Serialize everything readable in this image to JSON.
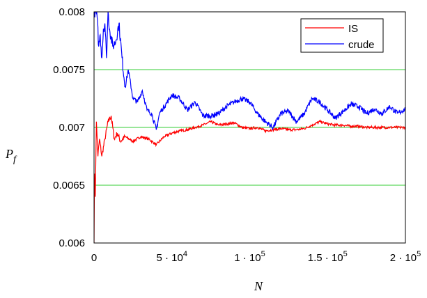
{
  "chart_data": {
    "type": "line",
    "xlabel": "N",
    "ylabel_main": "P",
    "ylabel_sub": "f",
    "xlim": [
      0,
      200000
    ],
    "ylim": [
      0.006,
      0.008
    ],
    "grid": "horizontal",
    "legend_position": "top-right",
    "y_ticks": [
      {
        "value": 0.006,
        "label": "0.006"
      },
      {
        "value": 0.0065,
        "label": "0.0065"
      },
      {
        "value": 0.007,
        "label": "0.007"
      },
      {
        "value": 0.0075,
        "label": "0.0075"
      },
      {
        "value": 0.008,
        "label": "0.008"
      }
    ],
    "x_ticks": [
      {
        "value": 0,
        "label": "0"
      },
      {
        "value": 50000,
        "mantissa": "5",
        "exp": "4"
      },
      {
        "value": 100000,
        "mantissa": "1",
        "exp": "5"
      },
      {
        "value": 150000,
        "mantissa": "1.5",
        "exp": "5"
      },
      {
        "value": 200000,
        "mantissa": "2",
        "exp": "5"
      }
    ],
    "series": [
      {
        "name": "IS",
        "color": "#ff0000",
        "x": [
          0,
          300,
          800,
          1500,
          2500,
          3500,
          5000,
          7000,
          9000,
          11000,
          13000,
          15000,
          17000,
          20000,
          25000,
          30000,
          35000,
          40000,
          45000,
          50000,
          55000,
          60000,
          65000,
          70000,
          75000,
          80000,
          85000,
          90000,
          95000,
          100000,
          105000,
          110000,
          115000,
          120000,
          125000,
          130000,
          135000,
          140000,
          145000,
          150000,
          155000,
          160000,
          165000,
          170000,
          175000,
          180000,
          185000,
          190000,
          195000,
          200000
        ],
        "y": [
          0.006,
          0.0066,
          0.0064,
          0.00705,
          0.00675,
          0.0069,
          0.00675,
          0.0069,
          0.00705,
          0.0071,
          0.0069,
          0.00695,
          0.00688,
          0.00692,
          0.00688,
          0.00692,
          0.0069,
          0.00685,
          0.00692,
          0.00695,
          0.00697,
          0.00698,
          0.007,
          0.00702,
          0.00705,
          0.00702,
          0.00703,
          0.00704,
          0.007,
          0.00699,
          0.007,
          0.00697,
          0.00698,
          0.00699,
          0.00698,
          0.00698,
          0.00699,
          0.00702,
          0.00705,
          0.00703,
          0.00702,
          0.00702,
          0.00701,
          0.00701,
          0.007,
          0.007,
          0.007,
          0.007,
          0.007,
          0.007
        ]
      },
      {
        "name": "crude",
        "color": "#0000ff",
        "x": [
          0,
          1000,
          2000,
          3000,
          4000,
          5000,
          6000,
          7000,
          8000,
          9000,
          10000,
          12000,
          14000,
          16000,
          18000,
          20000,
          22000,
          25000,
          28000,
          31000,
          34000,
          37000,
          40000,
          42000,
          44000,
          47000,
          50000,
          55000,
          60000,
          65000,
          70000,
          75000,
          80000,
          85000,
          90000,
          95000,
          100000,
          105000,
          110000,
          115000,
          120000,
          125000,
          130000,
          135000,
          140000,
          145000,
          150000,
          155000,
          160000,
          165000,
          170000,
          175000,
          180000,
          185000,
          190000,
          195000,
          200000
        ],
        "y": [
          0.008,
          0.008,
          0.00795,
          0.0077,
          0.0078,
          0.0076,
          0.00785,
          0.0079,
          0.0076,
          0.008,
          0.00785,
          0.0077,
          0.00775,
          0.0079,
          0.0076,
          0.00735,
          0.0075,
          0.00725,
          0.00722,
          0.00732,
          0.00715,
          0.00712,
          0.00698,
          0.00712,
          0.00716,
          0.00722,
          0.00728,
          0.00725,
          0.00715,
          0.00722,
          0.0071,
          0.0071,
          0.00712,
          0.00718,
          0.00722,
          0.00725,
          0.00722,
          0.00712,
          0.00705,
          0.007,
          0.00712,
          0.00714,
          0.00705,
          0.00712,
          0.00725,
          0.00722,
          0.00715,
          0.00708,
          0.00714,
          0.0072,
          0.00718,
          0.00712,
          0.00716,
          0.00712,
          0.00718,
          0.00712,
          0.00716
        ]
      }
    ]
  }
}
